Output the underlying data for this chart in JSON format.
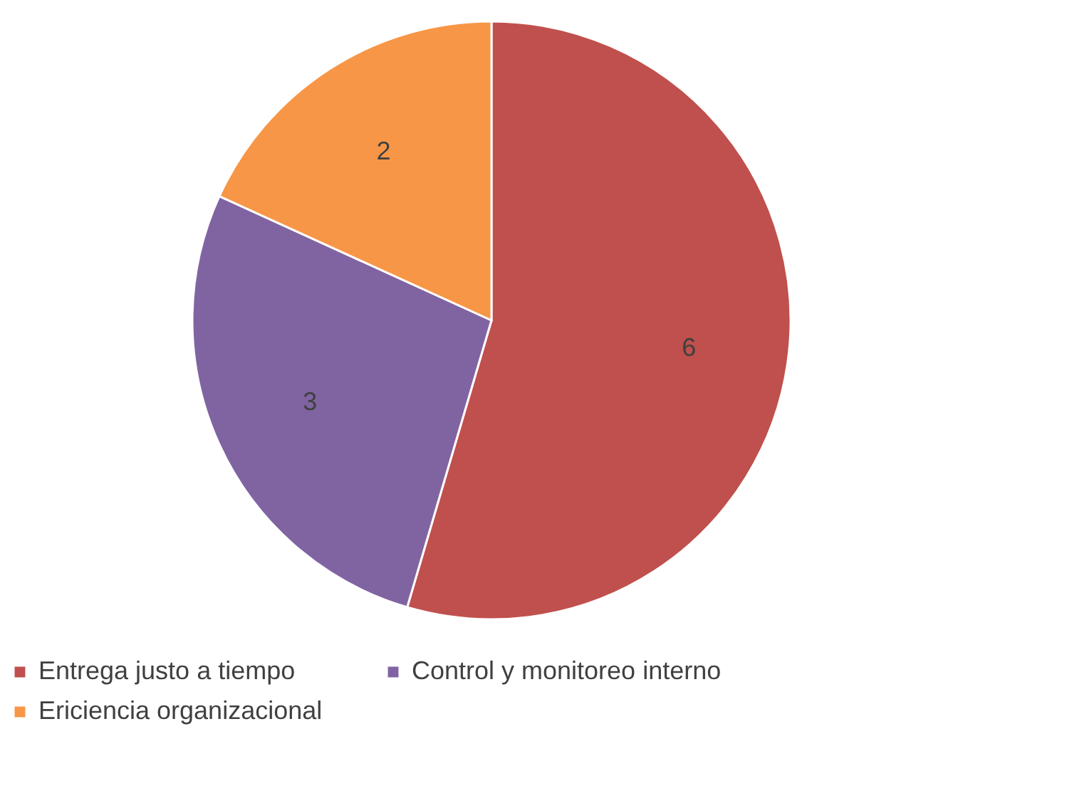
{
  "chart_data": {
    "type": "pie",
    "categories": [
      "Entrega justo a tiempo",
      "Control y monitoreo interno",
      "Ericiencia organizacional"
    ],
    "values": [
      6,
      3,
      2
    ],
    "colors": [
      "#c0504d",
      "#8064a2",
      "#f79646"
    ],
    "data_labels": true,
    "legend": "bottom"
  }
}
